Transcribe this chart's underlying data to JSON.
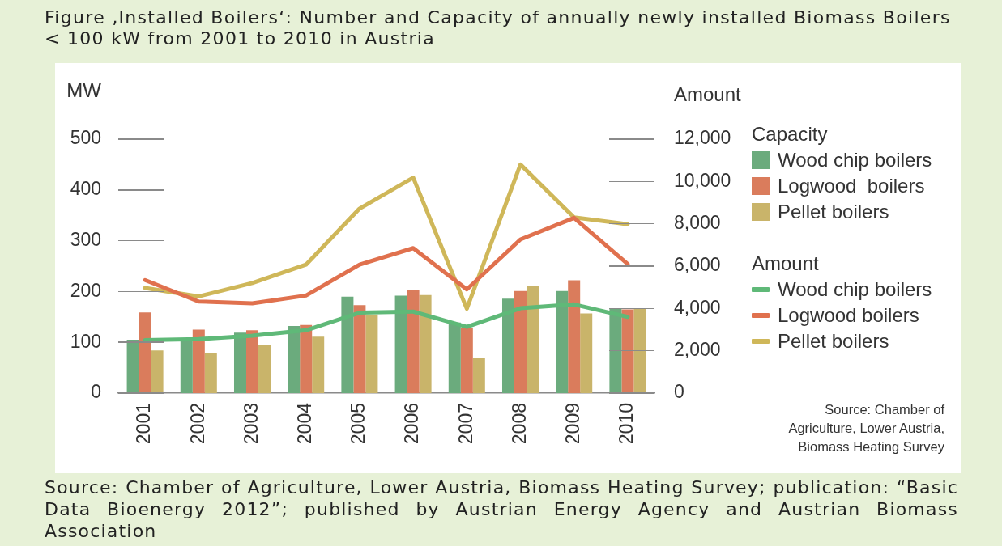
{
  "chart_data": {
    "type": "bar",
    "title": "Figure ‚Installed Boilers‘: Number and Capacity of annually newly installed Biomass Boilers < 100 kW from 2001 to 2010 in Austria",
    "ylabel": "MW",
    "y2label": "Amount",
    "categories": [
      "2001",
      "2002",
      "2003",
      "2004",
      "2005",
      "2006",
      "2007",
      "2008",
      "2009",
      "2010"
    ],
    "series": [
      {
        "name": "Wood chip boilers",
        "color": "#6bab7d",
        "values": [
          105,
          103,
          119,
          132,
          190,
          192,
          139,
          186,
          201,
          167
        ]
      },
      {
        "name": "Logwood  boilers",
        "color": "#da7c5c",
        "values": [
          159,
          125,
          124,
          134,
          173,
          203,
          129,
          201,
          222,
          165
        ]
      },
      {
        "name": "Pellet boilers",
        "color": "#c9b46a",
        "values": [
          84,
          78,
          94,
          111,
          155,
          193,
          69,
          210,
          157,
          167
        ]
      },
      {
        "name": "Wood chip boilers",
        "type": "line",
        "axis": "y2",
        "color": "#5fb978",
        "values": [
          2500,
          2550,
          2710,
          2970,
          3800,
          3850,
          3130,
          4010,
          4190,
          3600
        ]
      },
      {
        "name": "Logwood boilers",
        "type": "line",
        "axis": "y2",
        "color": "#e0714e",
        "values": [
          5340,
          4330,
          4240,
          4610,
          6070,
          6850,
          4900,
          7260,
          8280,
          6100
        ]
      },
      {
        "name": "Pellet boilers",
        "type": "line",
        "axis": "y2",
        "color": "#cfb759",
        "values": [
          4970,
          4570,
          5200,
          6070,
          8720,
          10180,
          3990,
          10800,
          8300,
          7980
        ]
      }
    ],
    "ylim": [
      0,
      500
    ],
    "yticks": [
      0,
      100,
      200,
      300,
      400,
      500
    ],
    "y2lim": [
      0,
      12000
    ],
    "y2ticks": [
      0,
      {
        "value": 2000,
        "label": "2,000"
      },
      {
        "value": 4000,
        "label": "4,000"
      },
      {
        "value": 6000,
        "label": "6,000"
      },
      {
        "value": 8000,
        "label": "8,000"
      },
      {
        "value": 10000,
        "label": "10,000"
      },
      {
        "value": 12000,
        "label": "12,000"
      }
    ],
    "legend": "right",
    "marker": "none",
    "line_style": "solid",
    "annotations": [
      "Capacity",
      "Amount",
      "Source: Chamber of Agriculture, Lower Austria, Biomass Heating Survey",
      "Source: Chamber of Agriculture, Lower Austria, Biomass Heating Survey; publication: “Basic Data Bioenergy 2012”; published by Austrian Energy Agency and Austrian Biomass Association"
    ]
  }
}
